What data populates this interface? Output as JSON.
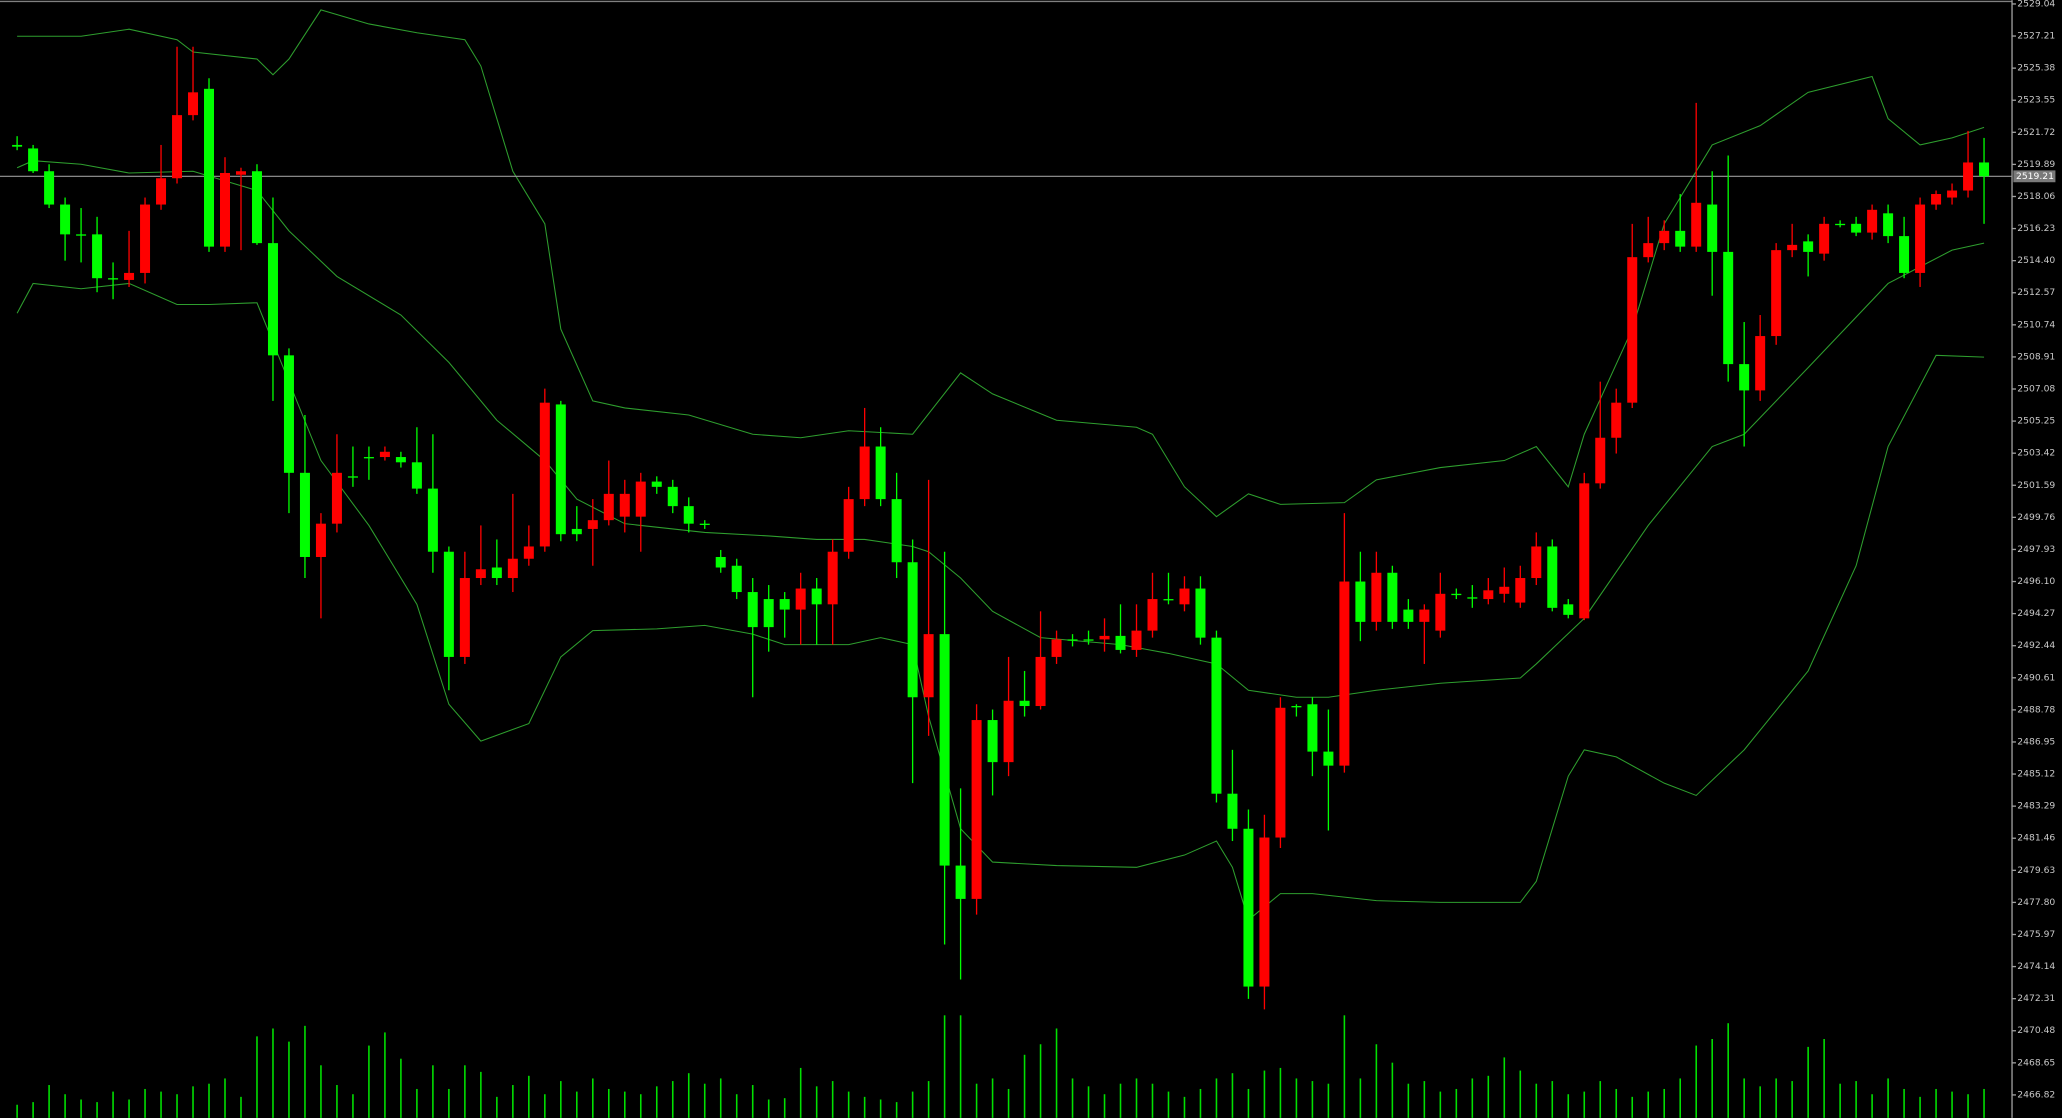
{
  "chart_data": {
    "type": "candlestick",
    "ylim": [
      2465.51,
      2529.26
    ],
    "xlim": [
      -1.07,
      124.75
    ],
    "yticks": [
      2529.04,
      2527.21,
      2525.38,
      2523.55,
      2521.72,
      2519.89,
      2518.06,
      2516.23,
      {
        "value": 2514.4,
        "label": "2514.40"
      },
      2512.57,
      2510.74,
      2508.91,
      2507.08,
      2505.25,
      2503.42,
      2501.59,
      2499.76,
      2497.93,
      {
        "value": 2496.1,
        "label": "2496.10"
      },
      2494.27,
      2492.44,
      2490.61,
      2488.78,
      2486.95,
      2485.12,
      2483.29,
      2481.46,
      2479.63,
      {
        "value": 2477.8,
        "label": "2477.80"
      },
      2475.97,
      2474.14,
      2472.31,
      2470.48,
      2468.65,
      2466.82
    ],
    "current_price": 2519.21,
    "up_color": "#ff0000",
    "down_color": "#00ff00",
    "volume_color": "#00e000",
    "open": [
      2521.0,
      2520.8,
      2519.5,
      2517.6,
      2515.9,
      2515.9,
      2513.4,
      2513.3,
      2513.7,
      2517.6,
      2519.1,
      2522.7,
      2524.2,
      2515.2,
      2519.3,
      2519.5,
      2515.4,
      2509.0,
      2502.3,
      2497.5,
      2499.4,
      2502.1,
      2503.2,
      2503.2,
      2503.2,
      2502.9,
      2501.4,
      2497.8,
      2491.8,
      2496.3,
      2496.9,
      2496.3,
      2497.4,
      2498.1,
      2506.2,
      2499.1,
      2499.1,
      2499.6,
      2499.8,
      2499.8,
      2501.8,
      2501.5,
      2500.4,
      2499.4,
      2497.5,
      2497.0,
      2495.5,
      2495.1,
      2495.1,
      2494.5,
      2495.7,
      2494.8,
      2497.8,
      2500.8,
      2503.8,
      2500.8,
      2497.2,
      2489.5,
      2493.1,
      2479.9,
      2478.0,
      2488.2,
      2485.8,
      2489.3,
      2489.0,
      2491.8,
      2492.8,
      2492.8,
      2492.8,
      2493.0,
      2492.2,
      2493.3,
      2495.1,
      2494.8,
      2495.7,
      2492.9,
      2484.0,
      2482.0,
      2473.0,
      2481.5,
      2489.0,
      2489.1,
      2486.4,
      2485.6,
      2496.1,
      2493.8,
      2496.6,
      2494.5,
      2493.8,
      2493.3,
      2495.4,
      2495.2,
      2495.1,
      2495.4,
      2494.9,
      2496.3,
      2498.1,
      2494.8,
      2494.0,
      2501.7,
      2504.3,
      2506.3,
      2514.6,
      2515.4,
      2516.1,
      2515.2,
      2517.6,
      2514.9,
      2508.5,
      2507.0,
      2510.1,
      2515.0,
      2515.5,
      2514.8,
      2516.5,
      2516.5,
      2516.0,
      2517.1,
      2515.8,
      2513.7,
      2517.6,
      2518.0,
      2518.4,
      2520.0
    ],
    "high": [
      2521.5,
      2521.0,
      2519.9,
      2518.0,
      2517.4,
      2516.9,
      2514.3,
      2516.1,
      2518.0,
      2521.0,
      2526.6,
      2526.6,
      2524.8,
      2520.3,
      2519.7,
      2519.9,
      2518.0,
      2509.4,
      2505.6,
      2500.0,
      2504.5,
      2503.8,
      2503.8,
      2503.8,
      2503.5,
      2504.9,
      2504.5,
      2498.1,
      2497.8,
      2499.3,
      2498.5,
      2501.1,
      2499.3,
      2507.1,
      2506.4,
      2500.4,
      2500.8,
      2503.0,
      2501.9,
      2502.3,
      2502.1,
      2501.9,
      2500.9,
      2499.6,
      2497.9,
      2497.4,
      2496.3,
      2495.9,
      2495.5,
      2496.6,
      2496.3,
      2498.5,
      2501.5,
      2506.0,
      2504.9,
      2502.3,
      2498.5,
      2501.9,
      2497.8,
      2484.3,
      2489.1,
      2488.8,
      2491.8,
      2491.0,
      2494.4,
      2493.3,
      2493.1,
      2493.3,
      2494.0,
      2494.8,
      2494.8,
      2496.6,
      2496.6,
      2496.4,
      2496.4,
      2493.3,
      2486.5,
      2483.1,
      2482.8,
      2489.5,
      2489.1,
      2489.5,
      2488.8,
      2500.0,
      2497.8,
      2497.8,
      2497.0,
      2495.1,
      2494.8,
      2496.6,
      2495.7,
      2495.9,
      2496.3,
      2496.9,
      2497.0,
      2498.9,
      2498.5,
      2495.1,
      2502.3,
      2507.5,
      2507.1,
      2516.5,
      2516.9,
      2516.7,
      2518.2,
      2523.4,
      2519.5,
      2520.4,
      2510.9,
      2511.3,
      2515.4,
      2516.5,
      2515.9,
      2516.9,
      2516.7,
      2516.9,
      2517.6,
      2517.6,
      2516.9,
      2518.0,
      2518.4,
      2518.8,
      2521.8,
      2521.4
    ],
    "low": [
      2520.7,
      2519.4,
      2517.4,
      2514.4,
      2514.3,
      2512.6,
      2512.2,
      2512.9,
      2513.1,
      2517.3,
      2518.8,
      2522.4,
      2514.9,
      2514.9,
      2515.0,
      2515.3,
      2506.4,
      2500.0,
      2496.3,
      2494.0,
      2498.9,
      2501.5,
      2501.9,
      2503.0,
      2502.6,
      2501.1,
      2496.6,
      2489.9,
      2491.4,
      2495.9,
      2495.9,
      2495.5,
      2497.0,
      2497.8,
      2498.4,
      2498.4,
      2497.0,
      2499.3,
      2498.9,
      2497.8,
      2501.1,
      2500.0,
      2498.9,
      2499.1,
      2496.6,
      2495.1,
      2489.5,
      2492.1,
      2492.9,
      2492.5,
      2492.5,
      2492.5,
      2497.4,
      2500.4,
      2500.4,
      2496.3,
      2484.6,
      2487.3,
      2475.4,
      2473.4,
      2477.1,
      2483.9,
      2485.0,
      2488.4,
      2488.8,
      2491.4,
      2492.4,
      2492.5,
      2492.1,
      2492.0,
      2491.8,
      2492.9,
      2494.8,
      2494.4,
      2492.5,
      2483.5,
      2481.3,
      2472.3,
      2471.7,
      2480.9,
      2488.4,
      2485.0,
      2481.9,
      2485.2,
      2492.7,
      2493.3,
      2493.4,
      2493.4,
      2491.4,
      2492.9,
      2495.1,
      2494.6,
      2494.8,
      2494.9,
      2494.6,
      2495.9,
      2494.4,
      2494.0,
      2493.9,
      2501.4,
      2503.4,
      2506.0,
      2514.3,
      2515.0,
      2514.9,
      2514.9,
      2512.4,
      2507.5,
      2503.8,
      2506.4,
      2509.6,
      2514.6,
      2513.5,
      2514.4,
      2516.3,
      2515.8,
      2515.6,
      2515.4,
      2513.4,
      2512.9,
      2517.3,
      2517.6,
      2518.0,
      2516.5
    ],
    "close": [
      2520.9,
      2519.5,
      2517.6,
      2515.9,
      2515.9,
      2513.4,
      2513.4,
      2513.7,
      2517.6,
      2519.1,
      2522.7,
      2524.0,
      2515.2,
      2519.4,
      2519.5,
      2515.4,
      2509.0,
      2502.3,
      2497.5,
      2499.4,
      2502.3,
      2502.1,
      2503.2,
      2503.5,
      2502.9,
      2501.4,
      2497.8,
      2491.8,
      2496.3,
      2496.8,
      2496.3,
      2497.4,
      2498.1,
      2506.3,
      2498.8,
      2498.8,
      2499.6,
      2501.1,
      2501.1,
      2501.8,
      2501.5,
      2500.4,
      2499.4,
      2499.4,
      2496.9,
      2495.5,
      2493.5,
      2493.5,
      2494.5,
      2495.7,
      2494.8,
      2497.8,
      2500.8,
      2503.8,
      2500.8,
      2497.2,
      2489.5,
      2493.1,
      2479.9,
      2478.0,
      2488.2,
      2485.8,
      2489.3,
      2489.0,
      2491.8,
      2492.8,
      2492.8,
      2492.8,
      2493.0,
      2492.2,
      2493.3,
      2495.1,
      2495.1,
      2495.7,
      2492.9,
      2484.0,
      2482.0,
      2473.0,
      2481.5,
      2488.9,
      2489.0,
      2486.4,
      2485.6,
      2496.1,
      2493.8,
      2496.6,
      2493.8,
      2493.8,
      2494.5,
      2495.4,
      2495.4,
      2495.2,
      2495.6,
      2495.8,
      2496.3,
      2498.1,
      2494.6,
      2494.2,
      2501.7,
      2504.3,
      2506.3,
      2514.6,
      2515.4,
      2516.1,
      2515.2,
      2517.7,
      2514.9,
      2508.5,
      2507.0,
      2510.1,
      2515.0,
      2515.3,
      2514.9,
      2516.5,
      2516.5,
      2516.0,
      2517.3,
      2515.8,
      2513.7,
      2517.6,
      2518.2,
      2518.4,
      2520.0,
      2519.21
    ],
    "volume": [
      10,
      12,
      25,
      18,
      14,
      12,
      20,
      14,
      22,
      20,
      18,
      24,
      26,
      30,
      16,
      62,
      68,
      58,
      70,
      40,
      25,
      18,
      55,
      65,
      45,
      22,
      40,
      22,
      40,
      35,
      16,
      25,
      32,
      18,
      28,
      20,
      30,
      22,
      20,
      18,
      24,
      28,
      34,
      26,
      30,
      18,
      25,
      14,
      15,
      38,
      24,
      28,
      20,
      16,
      14,
      12,
      20,
      28,
      78,
      78,
      26,
      30,
      22,
      48,
      56,
      68,
      30,
      24,
      18,
      26,
      30,
      26,
      20,
      16,
      22,
      30,
      34,
      22,
      36,
      38,
      30,
      28,
      26,
      78,
      30,
      56,
      42,
      26,
      28,
      20,
      22,
      30,
      32,
      46,
      36,
      26,
      28,
      18,
      20,
      28,
      22,
      16,
      20,
      22,
      30,
      55,
      60,
      72,
      30,
      24,
      30,
      28,
      54,
      60,
      26,
      28,
      18,
      30,
      22,
      16,
      22,
      20,
      18,
      22
    ],
    "bands": [
      {
        "color": "#2e9e2e",
        "x": [
          0,
          4,
          7,
          10,
          11,
          15,
          16,
          17,
          19,
          22,
          25,
          28,
          29,
          31,
          33,
          34,
          36,
          38,
          42,
          46,
          49,
          52,
          56,
          59,
          61,
          65,
          70,
          71,
          73,
          75,
          77,
          79,
          83,
          85,
          89,
          93,
          95,
          97,
          98,
          101,
          103,
          106,
          109,
          112,
          116,
          117,
          119,
          121,
          123
        ],
        "values": [
          2527.2,
          2527.2,
          2527.6,
          2527.0,
          2526.3,
          2525.9,
          2525.0,
          2525.9,
          2528.7,
          2527.9,
          2527.4,
          2527.0,
          2525.5,
          2519.5,
          2516.5,
          2510.5,
          2506.4,
          2506.0,
          2505.6,
          2504.5,
          2504.3,
          2504.7,
          2504.5,
          2508.0,
          2506.8,
          2505.3,
          2504.9,
          2504.5,
          2501.5,
          2499.8,
          2501.1,
          2500.5,
          2500.6,
          2501.9,
          2502.6,
          2503.0,
          2503.8,
          2501.5,
          2504.5,
          2510.5,
          2516.5,
          2521.0,
          2522.1,
          2524.0,
          2524.9,
          2522.5,
          2521.0,
          2521.4,
          2522.0
        ]
      },
      {
        "color": "#2e9e2e",
        "x": [
          0,
          1,
          4,
          7,
          11,
          15,
          17,
          20,
          24,
          27,
          30,
          33,
          35,
          38,
          43,
          47,
          50,
          53,
          56,
          57,
          59,
          61,
          64,
          69,
          72,
          75,
          77,
          80,
          82,
          85,
          89,
          94,
          95,
          98,
          102,
          106,
          108,
          112,
          117,
          121,
          123
        ],
        "values": [
          2519.7,
          2520.1,
          2519.9,
          2519.4,
          2519.5,
          2518.4,
          2516.1,
          2513.5,
          2511.3,
          2508.6,
          2505.3,
          2503.0,
          2500.8,
          2499.4,
          2498.9,
          2498.7,
          2498.5,
          2498.5,
          2498.1,
          2497.8,
          2496.3,
          2494.4,
          2492.9,
          2492.5,
          2492.0,
          2491.4,
          2489.9,
          2489.5,
          2489.5,
          2489.9,
          2490.3,
          2490.6,
          2491.4,
          2494.0,
          2499.3,
          2503.8,
          2504.5,
          2508.3,
          2513.1,
          2515.0,
          2515.4
        ]
      },
      {
        "color": "#2e9e2e",
        "x": [
          0,
          1,
          4,
          7,
          10,
          12,
          15,
          17,
          19,
          22,
          25,
          27,
          29,
          32,
          34,
          36,
          40,
          43,
          46,
          48,
          52,
          54,
          56,
          57,
          59,
          61,
          65,
          70,
          73,
          75,
          76,
          77,
          79,
          81,
          85,
          89,
          94,
          95,
          97,
          98,
          100,
          103,
          105,
          108,
          112,
          115,
          117,
          120,
          123
        ],
        "values": [
          2511.4,
          2513.1,
          2512.8,
          2513.1,
          2511.9,
          2511.9,
          2512.0,
          2507.5,
          2503.0,
          2499.3,
          2494.8,
          2489.1,
          2487.0,
          2488.0,
          2491.8,
          2493.3,
          2493.4,
          2493.6,
          2493.1,
          2492.5,
          2492.5,
          2492.9,
          2492.5,
          2488.4,
          2482.0,
          2480.1,
          2479.9,
          2479.8,
          2480.5,
          2481.3,
          2479.8,
          2476.8,
          2478.3,
          2478.3,
          2477.9,
          2477.8,
          2477.8,
          2479.0,
          2485.0,
          2486.5,
          2486.1,
          2484.6,
          2483.9,
          2486.5,
          2491.0,
          2497.0,
          2503.8,
          2509.0,
          2508.9
        ]
      }
    ]
  }
}
